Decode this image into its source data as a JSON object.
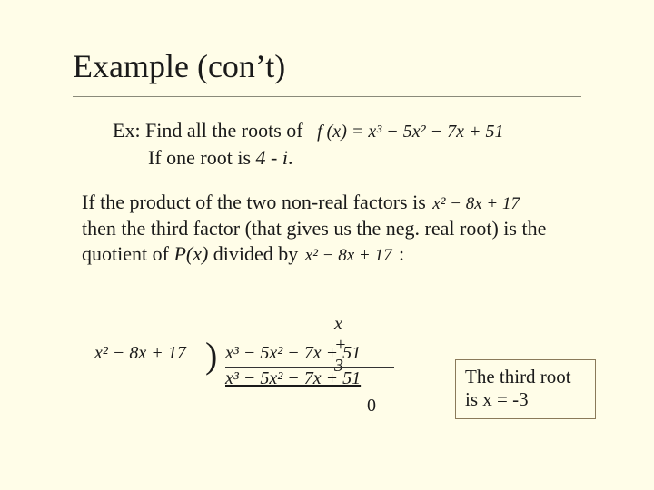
{
  "title": "Example (con’t)",
  "lead": {
    "line1_prefix": "Ex:  Find all the roots of",
    "poly_fx": "f (x) = x³ − 5x² − 7x + 51",
    "line2_prefix": "If one root is ",
    "known_root": "4 - i",
    "line2_suffix": "."
  },
  "para": {
    "t1": "If the product of the two non-real factors is  ",
    "quad1": "x² − 8x + 17",
    "t2": "then the third factor (that gives us the neg. real root) is the quotient of ",
    "px": "P(x)",
    "t3": " divided by  ",
    "quad2": "x² − 8x + 17",
    "t4": " :"
  },
  "division": {
    "quotient": "x + 3",
    "divisor": "x² − 8x + 17",
    "dividend": "x³ − 5x² − 7x + 51",
    "step1": "x³ − 5x² − 7x + 51",
    "remainder": "0"
  },
  "answer": {
    "l1": "The third root",
    "l2": "is x = -3"
  },
  "style": {
    "background": "#fffde8",
    "title_fontsize": 36,
    "body_fontsize": 22,
    "box_border": "#8a7a5a"
  }
}
